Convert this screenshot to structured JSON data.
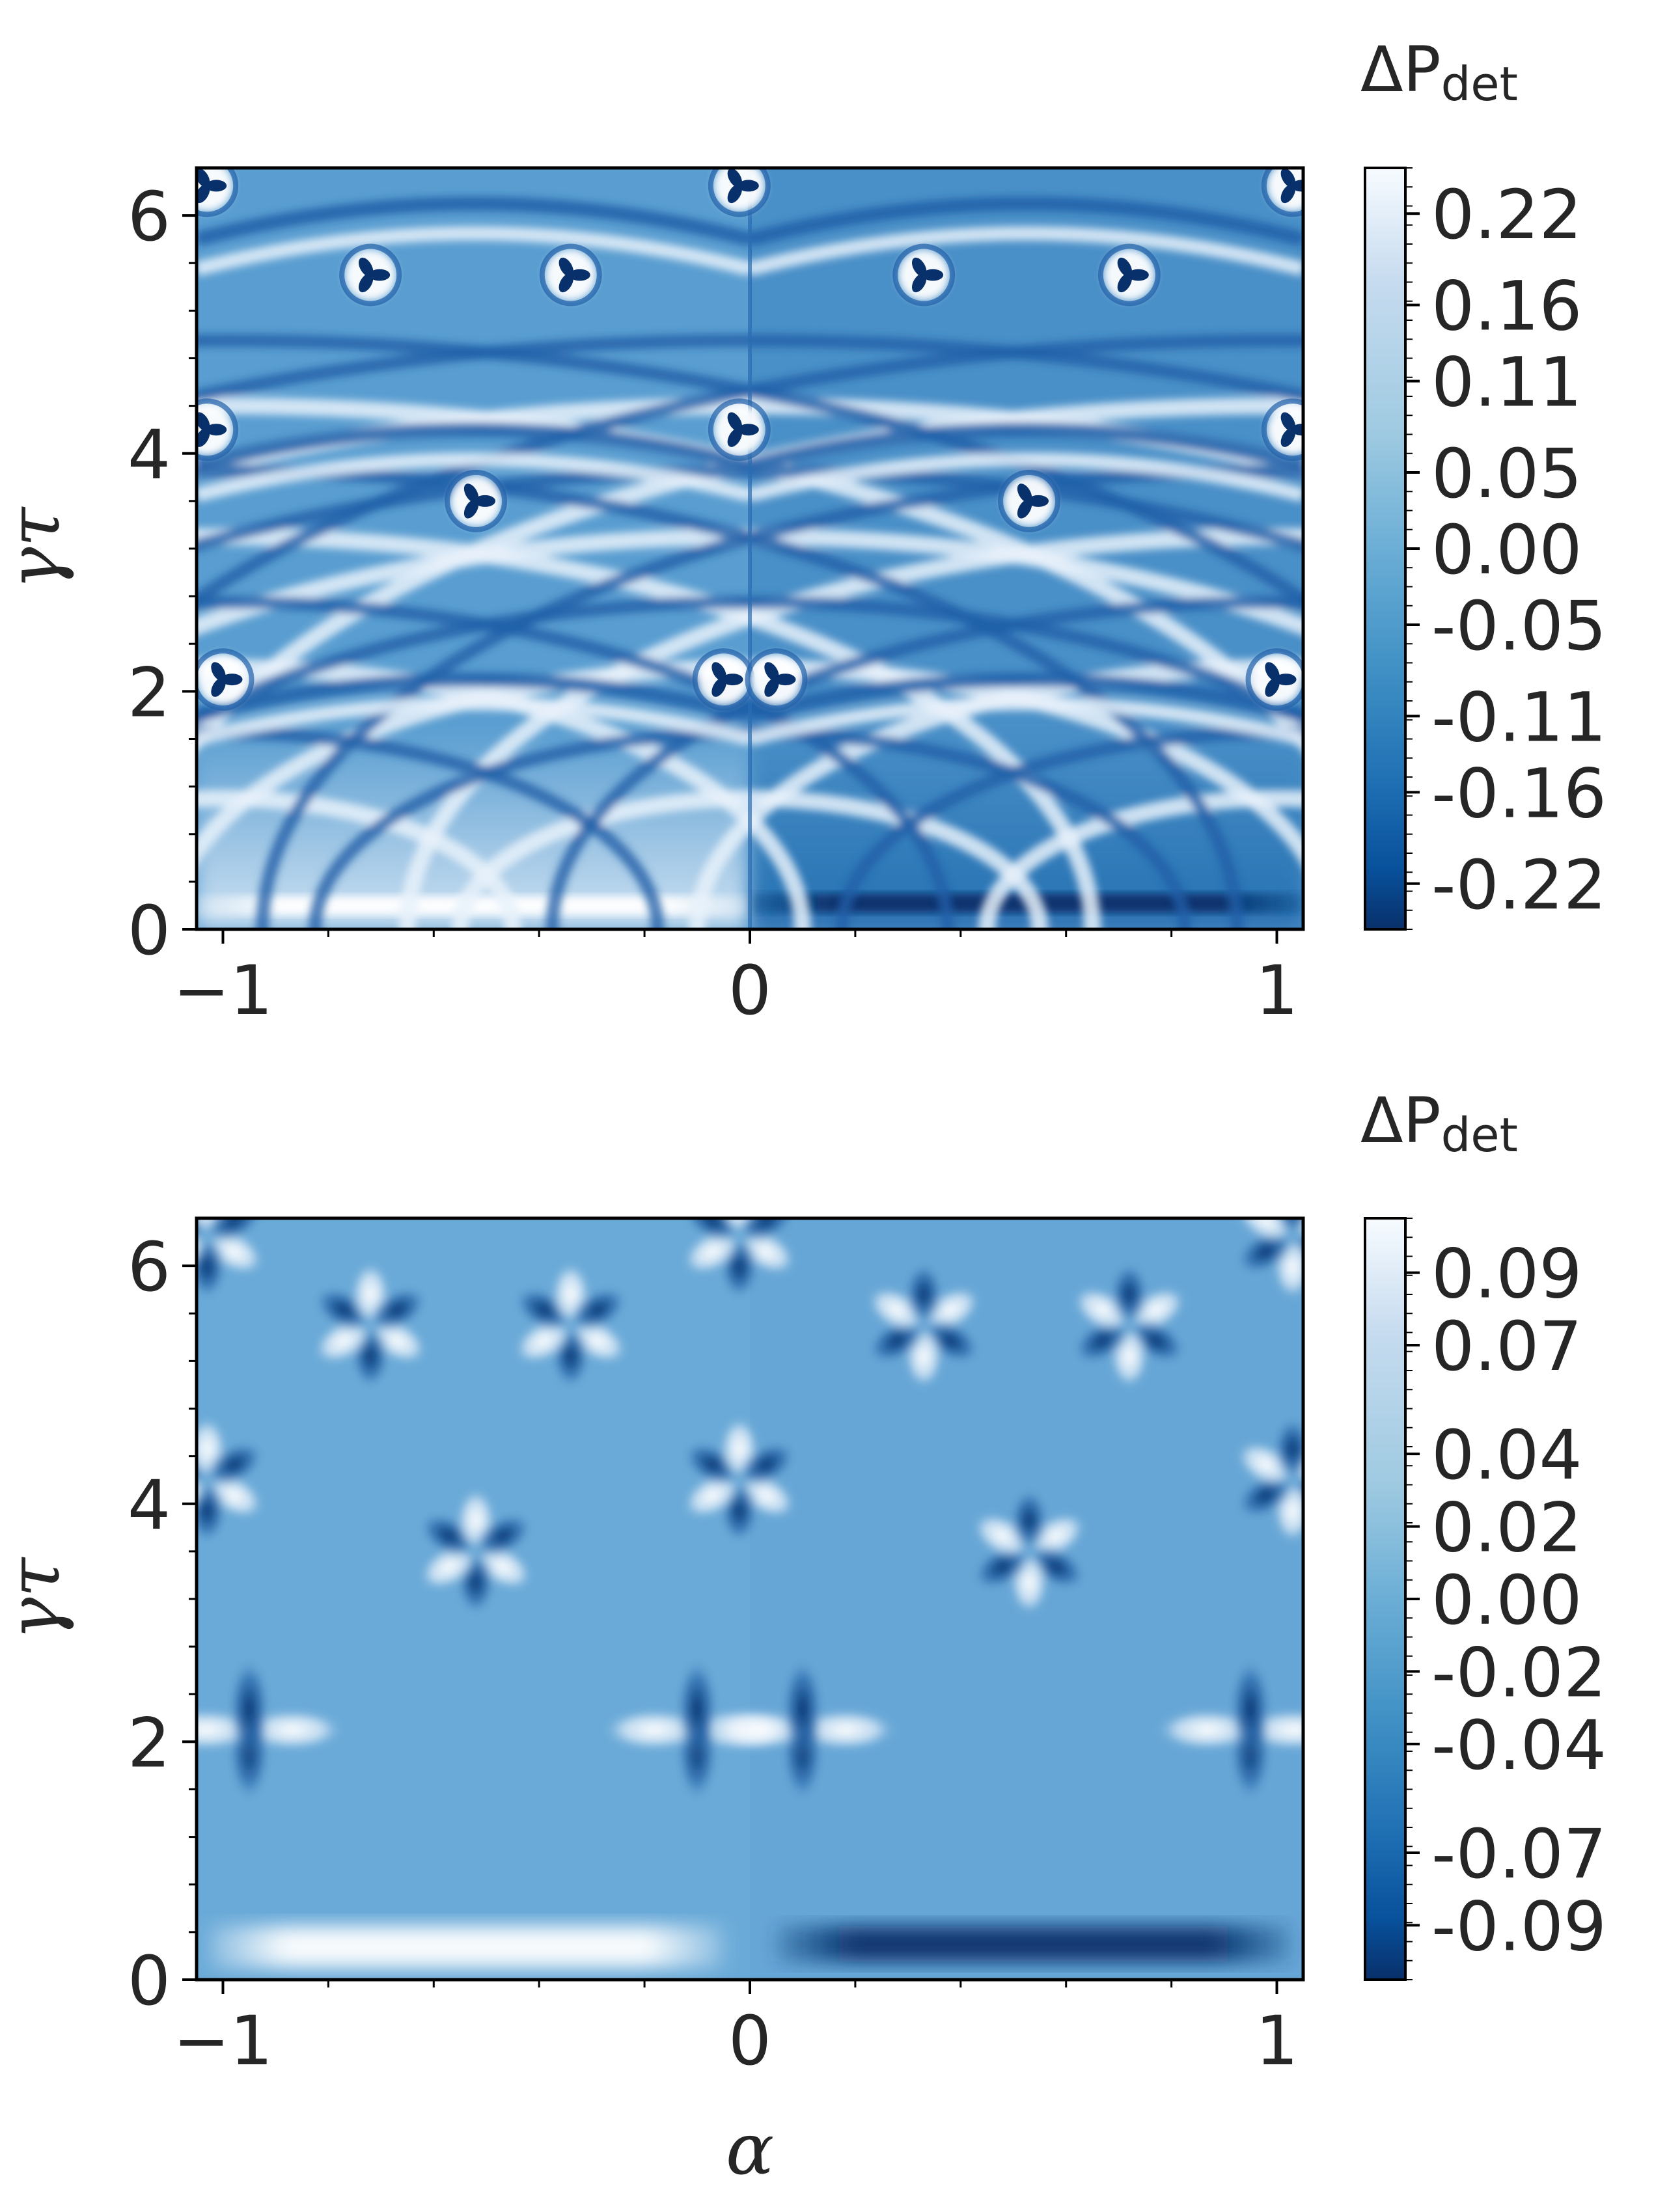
{
  "chart_data": [
    {
      "type": "heatmap",
      "panel": "top",
      "xlabel": "",
      "ylabel": "γτ",
      "xlim": [
        -1.05,
        1.05
      ],
      "ylim": [
        0,
        6.4
      ],
      "xticks": [
        -1,
        0,
        1
      ],
      "xtick_labels": [
        "−1",
        "0",
        "1"
      ],
      "yticks": [
        0,
        2,
        4,
        6
      ],
      "ytick_labels": [
        "0",
        "2",
        "4",
        "6"
      ],
      "colorbar": {
        "title": "ΔP",
        "title_sub": "det",
        "range": [
          -0.25,
          0.25
        ],
        "ticks": [
          0.22,
          0.16,
          0.11,
          0.05,
          0.0,
          -0.05,
          -0.11,
          -0.16,
          -0.22
        ],
        "tick_labels": [
          "0.22",
          "0.16",
          "0.11",
          "0.05",
          "0.00",
          "-0.05",
          "-0.11",
          "-0.16",
          "-0.22"
        ],
        "colormap": "Blues_r"
      },
      "vortex_centers": [
        {
          "alpha": -0.72,
          "gt": 5.5
        },
        {
          "alpha": -0.34,
          "gt": 5.5
        },
        {
          "alpha": 0.33,
          "gt": 5.5
        },
        {
          "alpha": 0.72,
          "gt": 5.5
        },
        {
          "alpha": -1.03,
          "gt": 4.2
        },
        {
          "alpha": -0.02,
          "gt": 4.2
        },
        {
          "alpha": 1.03,
          "gt": 4.2
        },
        {
          "alpha": -0.52,
          "gt": 3.6
        },
        {
          "alpha": 0.53,
          "gt": 3.6
        },
        {
          "alpha": -1.0,
          "gt": 2.1
        },
        {
          "alpha": -0.05,
          "gt": 2.1
        },
        {
          "alpha": 0.05,
          "gt": 2.1
        },
        {
          "alpha": 1.0,
          "gt": 2.1
        },
        {
          "alpha": -1.03,
          "gt": 6.25
        },
        {
          "alpha": -0.02,
          "gt": 6.25
        },
        {
          "alpha": 1.03,
          "gt": 6.25
        }
      ],
      "arc_radii": [
        1.1,
        2.2,
        3.3,
        4.4
      ],
      "colors": {
        "bg_left": "#5a9ed1",
        "bg_right": "#4a90c8",
        "line_light": "#e8f1fa",
        "line_dark": "#1f5fa8"
      }
    },
    {
      "type": "heatmap",
      "panel": "bottom",
      "xlabel": "α",
      "ylabel": "γτ",
      "xlim": [
        -1.05,
        1.05
      ],
      "ylim": [
        0,
        6.4
      ],
      "xticks": [
        -1,
        0,
        1
      ],
      "xtick_labels": [
        "−1",
        "0",
        "1"
      ],
      "yticks": [
        0,
        2,
        4,
        6
      ],
      "ytick_labels": [
        "0",
        "2",
        "4",
        "6"
      ],
      "colorbar": {
        "title": "ΔP",
        "title_sub": "det",
        "range": [
          -0.105,
          0.105
        ],
        "ticks": [
          0.09,
          0.07,
          0.04,
          0.02,
          0.0,
          -0.02,
          -0.04,
          -0.07,
          -0.09
        ],
        "tick_labels": [
          "0.09",
          "0.07",
          "0.04",
          "0.02",
          "0.00",
          "-0.02",
          "-0.04",
          "-0.07",
          "-0.09"
        ],
        "colormap": "Blues_r"
      },
      "lobe_centers": [
        {
          "alpha": -0.72,
          "gt": 5.5
        },
        {
          "alpha": -0.34,
          "gt": 5.5
        },
        {
          "alpha": 0.33,
          "gt": 5.5
        },
        {
          "alpha": 0.72,
          "gt": 5.5
        },
        {
          "alpha": -1.03,
          "gt": 4.2
        },
        {
          "alpha": -0.02,
          "gt": 4.2
        },
        {
          "alpha": 1.03,
          "gt": 4.2
        },
        {
          "alpha": -0.52,
          "gt": 3.6
        },
        {
          "alpha": 0.53,
          "gt": 3.6
        },
        {
          "alpha": -0.95,
          "gt": 2.1
        },
        {
          "alpha": -0.1,
          "gt": 2.1
        },
        {
          "alpha": 0.1,
          "gt": 2.1
        },
        {
          "alpha": 0.95,
          "gt": 2.1
        },
        {
          "alpha": -1.03,
          "gt": 6.25
        },
        {
          "alpha": -0.02,
          "gt": 6.25
        },
        {
          "alpha": 1.03,
          "gt": 6.25
        }
      ],
      "colors": {
        "bg": "#6aaad8",
        "bright": "#ffffff",
        "dark": "#0b3f80"
      }
    }
  ]
}
